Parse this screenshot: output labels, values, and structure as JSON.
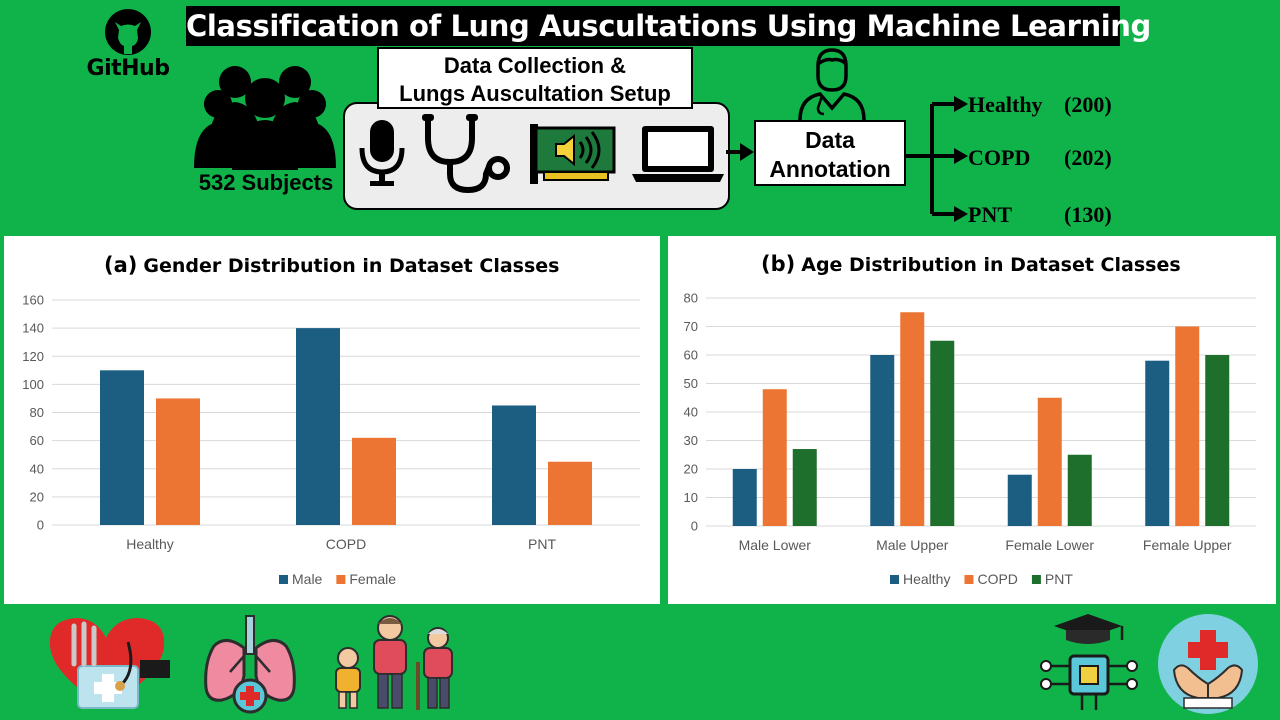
{
  "header": {
    "title": "Classification of Lung Auscultations Using Machine Learning",
    "github_label": "GitHub"
  },
  "pipeline": {
    "subjects_label": "532 Subjects",
    "setup_title_line1": "Data Collection &",
    "setup_title_line2": "Lungs Auscultation Setup",
    "devices": [
      "microphone-icon",
      "stethoscope-icon",
      "sound-card-icon",
      "laptop-icon"
    ],
    "annotation_line1": "Data",
    "annotation_line2": "Annotation",
    "classes": [
      {
        "name": "Healthy",
        "count": "(200)"
      },
      {
        "name": "COPD",
        "count": "(202)"
      },
      {
        "name": "PNT",
        "count": "(130)"
      }
    ]
  },
  "colors": {
    "background": "#0fb34a",
    "blue": "#1b5e82",
    "orange": "#ec7533",
    "green": "#1e6e2c"
  },
  "chart_data": [
    {
      "type": "bar",
      "tag": "(a)",
      "title": "Gender Distribution in Dataset Classes",
      "categories": [
        "Healthy",
        "COPD",
        "PNT"
      ],
      "series": [
        {
          "name": "Male",
          "values": [
            110,
            140,
            85
          ],
          "color": "#1b5e82"
        },
        {
          "name": "Female",
          "values": [
            90,
            62,
            45
          ],
          "color": "#ec7533"
        }
      ],
      "ylim": [
        0,
        160
      ],
      "yticks": [
        0,
        20,
        40,
        60,
        80,
        100,
        120,
        140,
        160
      ],
      "grid": true,
      "legend": "bottom"
    },
    {
      "type": "bar",
      "tag": "(b)",
      "title": "Age Distribution in Dataset Classes",
      "categories": [
        "Male Lower",
        "Male Upper",
        "Female Lower",
        "Female Upper"
      ],
      "series": [
        {
          "name": "Healthy",
          "values": [
            20,
            60,
            18,
            58
          ],
          "color": "#1b5e82"
        },
        {
          "name": "COPD",
          "values": [
            48,
            75,
            45,
            70
          ],
          "color": "#ec7533"
        },
        {
          "name": "PNT",
          "values": [
            27,
            65,
            25,
            60
          ],
          "color": "#1e6e2c"
        }
      ],
      "ylim": [
        0,
        80
      ],
      "yticks": [
        0,
        10,
        20,
        30,
        40,
        50,
        60,
        70,
        80
      ],
      "grid": true,
      "legend": "bottom"
    }
  ],
  "footer_icons": [
    "heart-health-icon",
    "lungs-icon",
    "family-icon",
    "ai-education-icon",
    "healthcare-hands-icon"
  ]
}
